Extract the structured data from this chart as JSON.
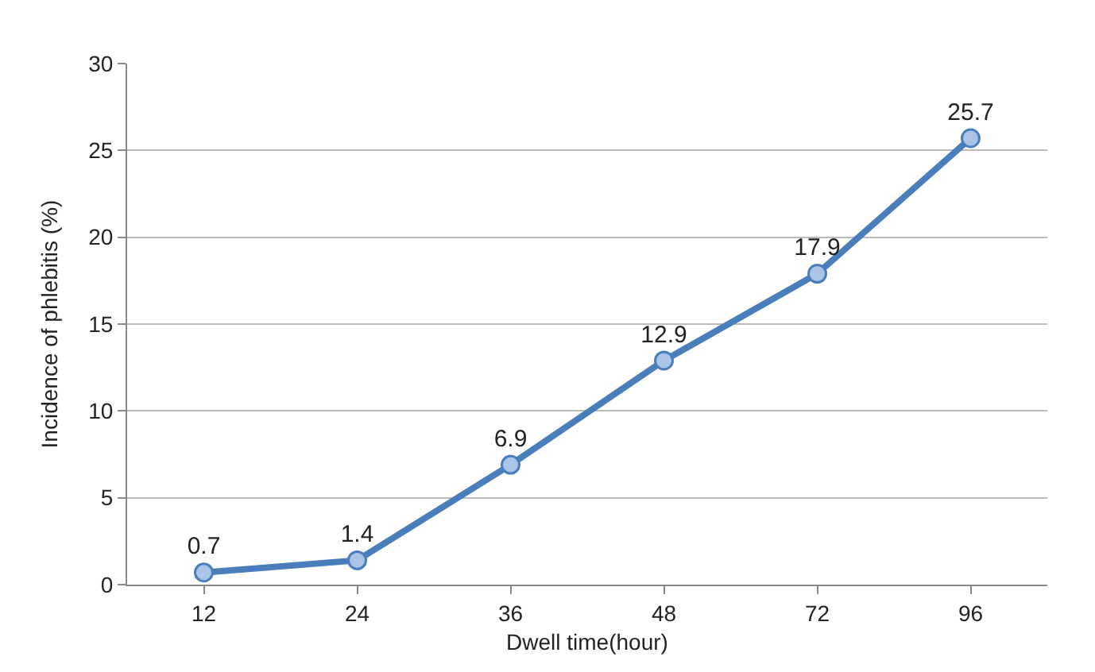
{
  "chart_data": {
    "type": "line",
    "xlabel": "Dwell time(hour)",
    "ylabel": "Incidence of phlebitis (%)",
    "categories": [
      "12",
      "24",
      "36",
      "48",
      "72",
      "96"
    ],
    "values": [
      0.7,
      1.4,
      6.9,
      12.9,
      17.9,
      25.7
    ],
    "color": "#4a7ebb",
    "ylim": [
      0,
      30
    ],
    "yticks": [
      0,
      5,
      10,
      15,
      20,
      25,
      30
    ],
    "grid": "y",
    "marker": "circle",
    "line_style": "solid",
    "data_labels": true,
    "legend": false
  }
}
